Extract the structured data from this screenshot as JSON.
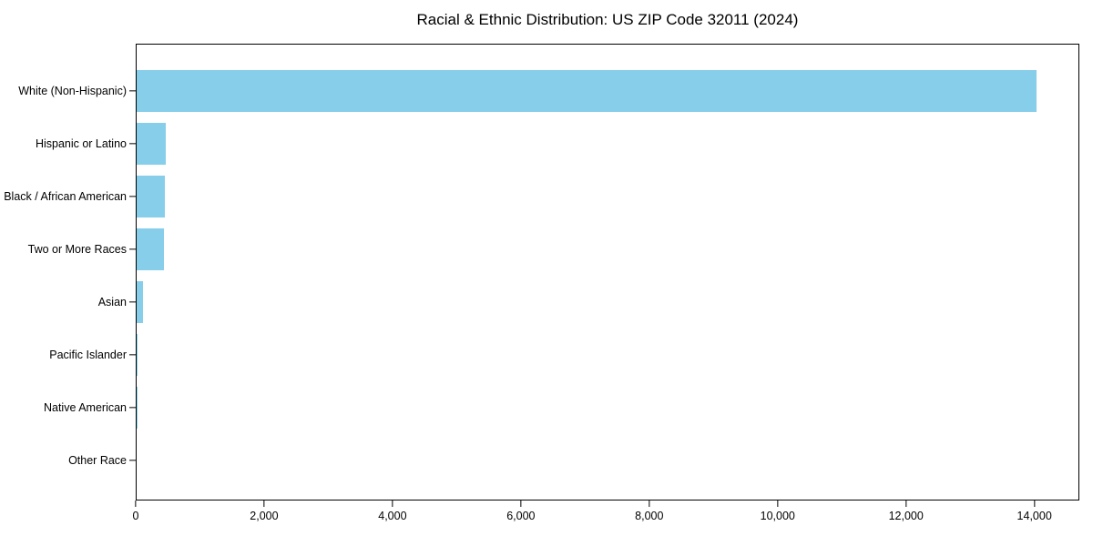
{
  "title": "Racial & Ethnic Distribution: US ZIP Code 32011 (2024)",
  "colors": {
    "bar": "#87CEEB",
    "spine": "#000000",
    "text": "#000000",
    "background": "#ffffff"
  },
  "chart_data": {
    "type": "bar",
    "orientation": "horizontal",
    "title": "Racial & Ethnic Distribution: US ZIP Code 32011 (2024)",
    "categories": [
      "White (Non-Hispanic)",
      "Hispanic or Latino",
      "Black / African American",
      "Two or More Races",
      "Asian",
      "Pacific Islander",
      "Native American",
      "Other Race"
    ],
    "values": [
      14040,
      460,
      440,
      420,
      100,
      12,
      5,
      0
    ],
    "xlabel": "",
    "ylabel": "",
    "xlim": [
      0,
      14700
    ],
    "x_ticks": [
      0,
      2000,
      4000,
      6000,
      8000,
      10000,
      12000,
      14000
    ],
    "x_tick_labels": [
      "0",
      "2,000",
      "4,000",
      "6,000",
      "8,000",
      "10,000",
      "12,000",
      "14,000"
    ],
    "bar_color": "#87CEEB",
    "grid": false,
    "legend": null
  }
}
